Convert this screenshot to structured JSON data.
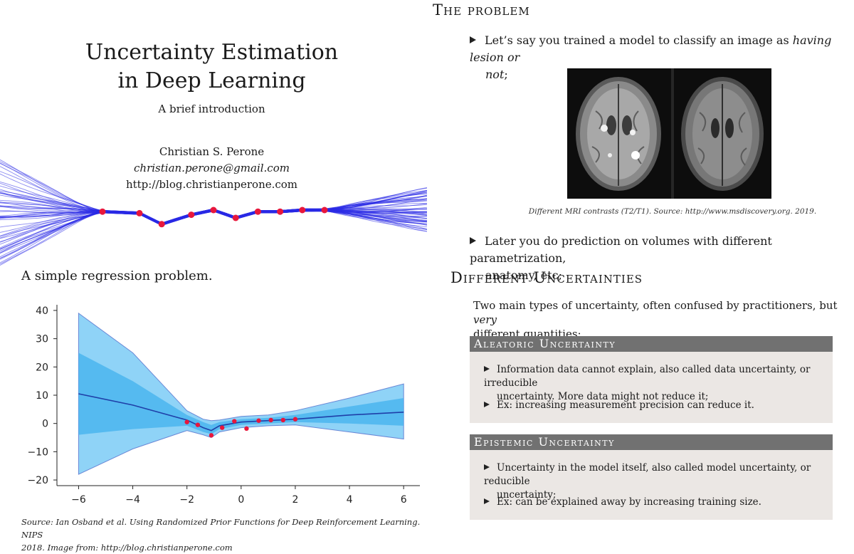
{
  "left_slide": {
    "title_line1": "Uncertainty Estimation",
    "title_line2": "in Deep Learning",
    "subtitle": "A brief introduction",
    "author": "Christian S. Perone",
    "email": "christian.perone@gmail.com",
    "website": "http://blog.christianperone.com",
    "caption": "A simple regression problem.",
    "source_line1": "Source: Ian Osband et al. Using Randomized Prior Functions for Deep Reinforcement Learning. NIPS",
    "source_line2": "2018. Image from: http://blog.christianperone.com"
  },
  "right_slide": {
    "problem_heading": "The problem",
    "bullet1_text": "Let’s say you trained a model to classify an image as ",
    "bullet1_italic_a": "having lesion or",
    "bullet1_italic_b": "not",
    "bullet1_end": ";",
    "mri_caption": "Different MRI contrasts (T2/T1). Source: http://www.msdiscovery.org. 2019.",
    "bullet2_line1": "Later you do prediction on volumes with different parametrization,",
    "bullet2_line2": "anatomy, etc;",
    "uncertainties_heading": "Different Uncertainties",
    "intro_text": "Two main types of uncertainty, often confused by practitioners, but ",
    "intro_italic": "very",
    "intro_line2": "different quantities:",
    "aleatoric": {
      "title": "Aleatoric Uncertainty",
      "item1_line1": "Information data cannot explain, also called data uncertainty, or irreducible",
      "item1_line2": "uncertainty. More data might not reduce it;",
      "item2": "Ex: increasing measurement precision can reduce it."
    },
    "epistemic": {
      "title": "Epistemic Uncertainty",
      "item1_line1": "Uncertainty in the model itself, also called model uncertainty, or reducible",
      "item1_line2": "uncertainty;",
      "item2": "Ex: can be explained away by increasing training size."
    }
  },
  "colors": {
    "ensemble_line": "#2a2ae6",
    "data_point": "#e8173c",
    "band_outer": "#8fd3f7",
    "band_inner": "#4bb5ee",
    "mean_line": "#1f3fa8",
    "box_header": "#717171",
    "box_body": "#ebe7e4"
  },
  "chart_data": [
    {
      "type": "line",
      "x": [
        -3.0,
        -2.0,
        -1.4,
        -0.6,
        0.0,
        0.6,
        1.2,
        1.8,
        2.4,
        3.0
      ],
      "y": [
        0.4,
        0.3,
        -0.4,
        0.2,
        0.5,
        0.0,
        0.4,
        0.4,
        0.5,
        0.5
      ]
    },
    {
      "type": "area",
      "x": [
        -6,
        -4,
        -2,
        -1.4,
        -1.1,
        -0.8,
        0,
        1,
        2,
        4,
        6
      ],
      "mean": [
        10.5,
        6.5,
        1.2,
        -1.5,
        -2.5,
        -0.8,
        0.5,
        1.0,
        1.5,
        3.0,
        4.0
      ],
      "inner_upper": [
        25,
        15,
        3,
        0.5,
        -0.5,
        0.5,
        1.5,
        2,
        3,
        6,
        9
      ],
      "inner_lower": [
        -4,
        -2,
        -0.8,
        -3,
        -3.8,
        -2,
        -0.5,
        0,
        0.5,
        0,
        -0.8
      ],
      "outer_upper": [
        39,
        25,
        4.5,
        1.5,
        1.0,
        1.2,
        2.5,
        3,
        4.5,
        9,
        14
      ],
      "outer_lower": [
        -18,
        -9,
        -2.5,
        -4,
        -5,
        -3,
        -1.5,
        -0.8,
        -0.5,
        -3,
        -5.5
      ],
      "points_x": [
        -2.0,
        -1.6,
        -1.1,
        -0.7,
        -0.25,
        0.2,
        0.65,
        1.1,
        1.55,
        2.0
      ],
      "points_y": [
        0.5,
        -0.5,
        -4.2,
        -1.5,
        0.8,
        -1.8,
        1.0,
        1.2,
        1.2,
        1.5
      ],
      "xticks": [
        -6,
        -4,
        -2,
        0,
        2,
        4,
        6
      ],
      "yticks": [
        40,
        30,
        20,
        10,
        0,
        -10,
        -20
      ],
      "xlim": [
        -6.8,
        6.6
      ],
      "ylim": [
        -22,
        42
      ]
    }
  ]
}
